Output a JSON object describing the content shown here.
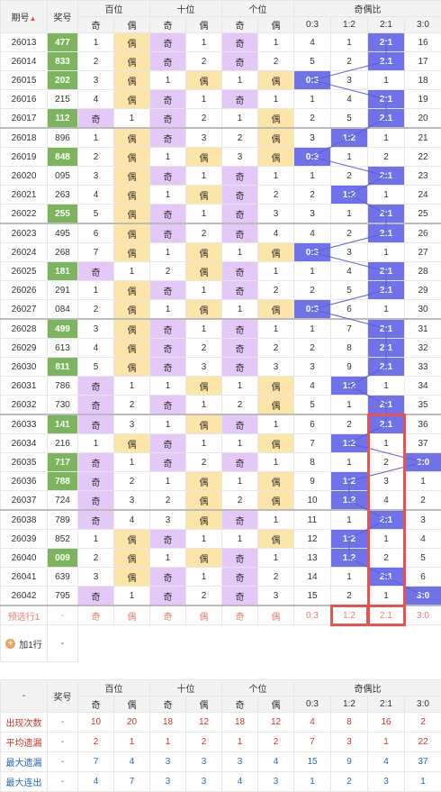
{
  "header": {
    "issue_label": "期号",
    "number_label": "奖号",
    "hundreds": "百位",
    "tens": "十位",
    "units": "个位",
    "ratio": "奇偶比",
    "odd": "奇",
    "even": "偶",
    "r03": "0:3",
    "r12": "1:2",
    "r21": "2:1",
    "r30": "3:0"
  },
  "rows": [
    {
      "issue": "26013",
      "num": "477",
      "hl": true,
      "h": [
        "1",
        "偶",
        "oe"
      ],
      "t": [
        "奇",
        "1",
        "ob"
      ],
      "u": [
        "奇",
        "1",
        "ob"
      ],
      "r": [
        "4",
        "1",
        "2:1",
        "16"
      ],
      "rc": 2
    },
    {
      "issue": "26014",
      "num": "833",
      "hl": true,
      "h": [
        "2",
        "偶",
        "oe"
      ],
      "t": [
        "奇",
        "2",
        "ob"
      ],
      "u": [
        "奇",
        "2",
        "ob"
      ],
      "r": [
        "5",
        "2",
        "2:1",
        "17"
      ],
      "rc": 2
    },
    {
      "issue": "26015",
      "num": "202",
      "hl": true,
      "h": [
        "3",
        "偶",
        "oe"
      ],
      "t": [
        "1",
        "偶",
        "ne"
      ],
      "u": [
        "1",
        "偶",
        "ne"
      ],
      "r": [
        "0:3",
        "3",
        "1",
        "18"
      ],
      "rc": 0
    },
    {
      "issue": "26016",
      "num": "215",
      "hl": false,
      "h": [
        "4",
        "偶",
        "oe"
      ],
      "t": [
        "奇",
        "1",
        "ob"
      ],
      "u": [
        "奇",
        "1",
        "ob"
      ],
      "r": [
        "1",
        "4",
        "2:1",
        "19"
      ],
      "rc": 2
    },
    {
      "issue": "26017",
      "num": "112",
      "hl": true,
      "h": [
        "奇",
        "1",
        "ob"
      ],
      "t": [
        "奇",
        "2",
        "ob"
      ],
      "u": [
        "1",
        "偶",
        "ne"
      ],
      "r": [
        "2",
        "5",
        "2:1",
        "20"
      ],
      "rc": 2
    },
    {
      "issue": "26018",
      "num": "896",
      "hl": false,
      "sep": true,
      "h": [
        "1",
        "偶",
        "oe"
      ],
      "t": [
        "奇",
        "3",
        "ob"
      ],
      "u": [
        "2",
        "偶",
        "ne"
      ],
      "r": [
        "3",
        "1:2",
        "1",
        "21"
      ],
      "rc": 1
    },
    {
      "issue": "26019",
      "num": "848",
      "hl": true,
      "h": [
        "2",
        "偶",
        "oe"
      ],
      "t": [
        "1",
        "偶",
        "ne"
      ],
      "u": [
        "3",
        "偶",
        "ne"
      ],
      "r": [
        "0:3",
        "1",
        "2",
        "22"
      ],
      "rc": 0
    },
    {
      "issue": "26020",
      "num": "095",
      "hl": false,
      "h": [
        "3",
        "偶",
        "oe"
      ],
      "t": [
        "奇",
        "1",
        "ob"
      ],
      "u": [
        "奇",
        "1",
        "ob"
      ],
      "r": [
        "1",
        "2",
        "2:1",
        "23"
      ],
      "rc": 2
    },
    {
      "issue": "26021",
      "num": "263",
      "hl": false,
      "h": [
        "4",
        "偶",
        "oe"
      ],
      "t": [
        "1",
        "偶",
        "ne"
      ],
      "u": [
        "奇",
        "2",
        "ob"
      ],
      "r": [
        "2",
        "1:2",
        "1",
        "24"
      ],
      "rc": 1
    },
    {
      "issue": "26022",
      "num": "255",
      "hl": true,
      "h": [
        "5",
        "偶",
        "oe"
      ],
      "t": [
        "奇",
        "1",
        "ob"
      ],
      "u": [
        "奇",
        "3",
        "ob"
      ],
      "r": [
        "3",
        "1",
        "2:1",
        "25"
      ],
      "rc": 2
    },
    {
      "issue": "26023",
      "num": "495",
      "hl": false,
      "sep": true,
      "h": [
        "6",
        "偶",
        "oe"
      ],
      "t": [
        "奇",
        "2",
        "ob"
      ],
      "u": [
        "奇",
        "4",
        "ob"
      ],
      "r": [
        "4",
        "2",
        "2:1",
        "26"
      ],
      "rc": 2
    },
    {
      "issue": "26024",
      "num": "268",
      "hl": false,
      "h": [
        "7",
        "偶",
        "oe"
      ],
      "t": [
        "1",
        "偶",
        "ne"
      ],
      "u": [
        "1",
        "偶",
        "ne"
      ],
      "r": [
        "0:3",
        "3",
        "1",
        "27"
      ],
      "rc": 0
    },
    {
      "issue": "26025",
      "num": "181",
      "hl": true,
      "h": [
        "奇",
        "1",
        "ob"
      ],
      "t": [
        "2",
        "偶",
        "ne"
      ],
      "u": [
        "奇",
        "1",
        "ob"
      ],
      "r": [
        "1",
        "4",
        "2:1",
        "28"
      ],
      "rc": 2
    },
    {
      "issue": "26026",
      "num": "291",
      "hl": false,
      "h": [
        "1",
        "偶",
        "oe"
      ],
      "t": [
        "奇",
        "1",
        "ob"
      ],
      "u": [
        "奇",
        "2",
        "ob"
      ],
      "r": [
        "2",
        "5",
        "2:1",
        "29"
      ],
      "rc": 2
    },
    {
      "issue": "26027",
      "num": "084",
      "hl": false,
      "h": [
        "2",
        "偶",
        "oe"
      ],
      "t": [
        "1",
        "偶",
        "ne"
      ],
      "u": [
        "1",
        "偶",
        "ne"
      ],
      "r": [
        "0:3",
        "6",
        "1",
        "30"
      ],
      "rc": 0
    },
    {
      "issue": "26028",
      "num": "499",
      "hl": true,
      "sep": true,
      "h": [
        "3",
        "偶",
        "oe"
      ],
      "t": [
        "奇",
        "1",
        "ob"
      ],
      "u": [
        "奇",
        "1",
        "ob"
      ],
      "r": [
        "1",
        "7",
        "2:1",
        "31"
      ],
      "rc": 2
    },
    {
      "issue": "26029",
      "num": "613",
      "hl": false,
      "h": [
        "4",
        "偶",
        "oe"
      ],
      "t": [
        "奇",
        "2",
        "ob"
      ],
      "u": [
        "奇",
        "2",
        "ob"
      ],
      "r": [
        "2",
        "8",
        "2:1",
        "32"
      ],
      "rc": 2
    },
    {
      "issue": "26030",
      "num": "811",
      "hl": true,
      "h": [
        "5",
        "偶",
        "oe"
      ],
      "t": [
        "奇",
        "3",
        "ob"
      ],
      "u": [
        "奇",
        "3",
        "ob"
      ],
      "r": [
        "3",
        "9",
        "2:1",
        "33"
      ],
      "rc": 2
    },
    {
      "issue": "26031",
      "num": "786",
      "hl": false,
      "h": [
        "奇",
        "1",
        "ob"
      ],
      "t": [
        "1",
        "偶",
        "ne"
      ],
      "u": [
        "1",
        "偶",
        "ne"
      ],
      "r": [
        "4",
        "1:2",
        "1",
        "34"
      ],
      "rc": 1
    },
    {
      "issue": "26032",
      "num": "730",
      "hl": false,
      "h": [
        "奇",
        "2",
        "ob"
      ],
      "t": [
        "奇",
        "1",
        "ob"
      ],
      "u": [
        "2",
        "偶",
        "ne"
      ],
      "r": [
        "5",
        "1",
        "2:1",
        "35"
      ],
      "rc": 2
    },
    {
      "issue": "26033",
      "num": "141",
      "hl": true,
      "sep": true,
      "h": [
        "奇",
        "3",
        "ob"
      ],
      "t": [
        "1",
        "偶",
        "ne"
      ],
      "u": [
        "奇",
        "1",
        "ob"
      ],
      "r": [
        "6",
        "2",
        "2:1",
        "36"
      ],
      "rc": 2
    },
    {
      "issue": "26034",
      "num": "216",
      "hl": false,
      "h": [
        "1",
        "偶",
        "oe"
      ],
      "t": [
        "奇",
        "1",
        "ob"
      ],
      "u": [
        "1",
        "偶",
        "ne"
      ],
      "r": [
        "7",
        "1:2",
        "1",
        "37"
      ],
      "rc": 1
    },
    {
      "issue": "26035",
      "num": "717",
      "hl": true,
      "h": [
        "奇",
        "1",
        "ob"
      ],
      "t": [
        "奇",
        "2",
        "ob"
      ],
      "u": [
        "奇",
        "1",
        "ob"
      ],
      "r": [
        "8",
        "1",
        "2",
        "3:0"
      ],
      "rc": 3
    },
    {
      "issue": "26036",
      "num": "788",
      "hl": true,
      "h": [
        "奇",
        "2",
        "ob"
      ],
      "t": [
        "1",
        "偶",
        "ne"
      ],
      "u": [
        "1",
        "偶",
        "ne"
      ],
      "r": [
        "9",
        "1:2",
        "3",
        "1"
      ],
      "rc": 1
    },
    {
      "issue": "26037",
      "num": "724",
      "hl": false,
      "h": [
        "奇",
        "3",
        "ob"
      ],
      "t": [
        "2",
        "偶",
        "ne"
      ],
      "u": [
        "2",
        "偶",
        "ne"
      ],
      "r": [
        "10",
        "1:2",
        "4",
        "2"
      ],
      "rc": 1
    },
    {
      "issue": "26038",
      "num": "789",
      "hl": false,
      "sep": true,
      "h": [
        "奇",
        "4",
        "ob"
      ],
      "t": [
        "3",
        "偶",
        "ne"
      ],
      "u": [
        "奇",
        "1",
        "ob"
      ],
      "r": [
        "11",
        "1",
        "2:1",
        "3"
      ],
      "rc": 2
    },
    {
      "issue": "26039",
      "num": "852",
      "hl": false,
      "h": [
        "1",
        "偶",
        "oe"
      ],
      "t": [
        "奇",
        "1",
        "ob"
      ],
      "u": [
        "1",
        "偶",
        "ne"
      ],
      "r": [
        "12",
        "1:2",
        "1",
        "4"
      ],
      "rc": 1
    },
    {
      "issue": "26040",
      "num": "009",
      "hl": true,
      "h": [
        "2",
        "偶",
        "oe"
      ],
      "t": [
        "1",
        "偶",
        "ne"
      ],
      "u": [
        "奇",
        "1",
        "ob"
      ],
      "r": [
        "13",
        "1:2",
        "2",
        "5"
      ],
      "rc": 1
    },
    {
      "issue": "26041",
      "num": "639",
      "hl": false,
      "h": [
        "3",
        "偶",
        "oe"
      ],
      "t": [
        "奇",
        "1",
        "ob"
      ],
      "u": [
        "奇",
        "2",
        "ob"
      ],
      "r": [
        "14",
        "1",
        "2:1",
        "6"
      ],
      "rc": 2
    },
    {
      "issue": "26042",
      "num": "795",
      "hl": false,
      "h": [
        "奇",
        "1",
        "ob"
      ],
      "t": [
        "奇",
        "2",
        "ob"
      ],
      "u": [
        "奇",
        "3",
        "ob"
      ],
      "r": [
        "15",
        "2",
        "1",
        "3:0"
      ],
      "rc": 3
    }
  ],
  "predict": {
    "label": "预选行1",
    "num": "-",
    "cells": [
      "奇",
      "偶",
      "奇",
      "偶",
      "奇",
      "偶",
      "0:3",
      "1:2",
      "2:1",
      "3:0"
    ]
  },
  "add": {
    "label": "加1行",
    "num": "-"
  },
  "footer": {
    "dash": "-",
    "number_label": "奖号",
    "stats": [
      {
        "label": "出现次数",
        "num": "-",
        "vals": [
          "10",
          "20",
          "18",
          "12",
          "18",
          "12",
          "4",
          "8",
          "16",
          "2"
        ]
      },
      {
        "label": "平均遗漏",
        "num": "-",
        "vals": [
          "2",
          "1",
          "1",
          "2",
          "1",
          "2",
          "7",
          "3",
          "1",
          "22"
        ]
      },
      {
        "label": "最大遗漏",
        "num": "-",
        "vals": [
          "7",
          "4",
          "3",
          "3",
          "3",
          "4",
          "15",
          "9",
          "4",
          "37"
        ]
      },
      {
        "label": "最大连出",
        "num": "-",
        "vals": [
          "4",
          "7",
          "3",
          "3",
          "4",
          "3",
          "1",
          "2",
          "3",
          "1"
        ]
      }
    ]
  }
}
